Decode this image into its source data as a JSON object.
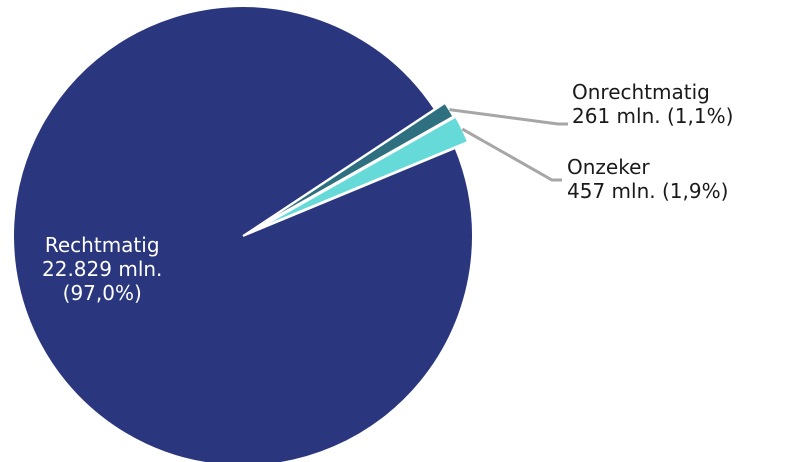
{
  "chart_data": {
    "type": "pie",
    "title": "",
    "unit": "mln.",
    "slices": [
      {
        "name": "Rechtmatig",
        "value": 22829,
        "value_label": "22.829 mln.",
        "percent_label": "(97,0%)",
        "color": "#2a367d"
      },
      {
        "name": "Onrechtmatig",
        "value": 261,
        "value_label": "261 mln.",
        "percent_label": "(1,1%)",
        "color": "#2e7080"
      },
      {
        "name": "Onzeker",
        "value": 457,
        "value_label": "457 mln.",
        "percent_label": "(1,9%)",
        "color": "#66d9d9"
      }
    ],
    "leader_line_color": "#a6a6a6"
  }
}
